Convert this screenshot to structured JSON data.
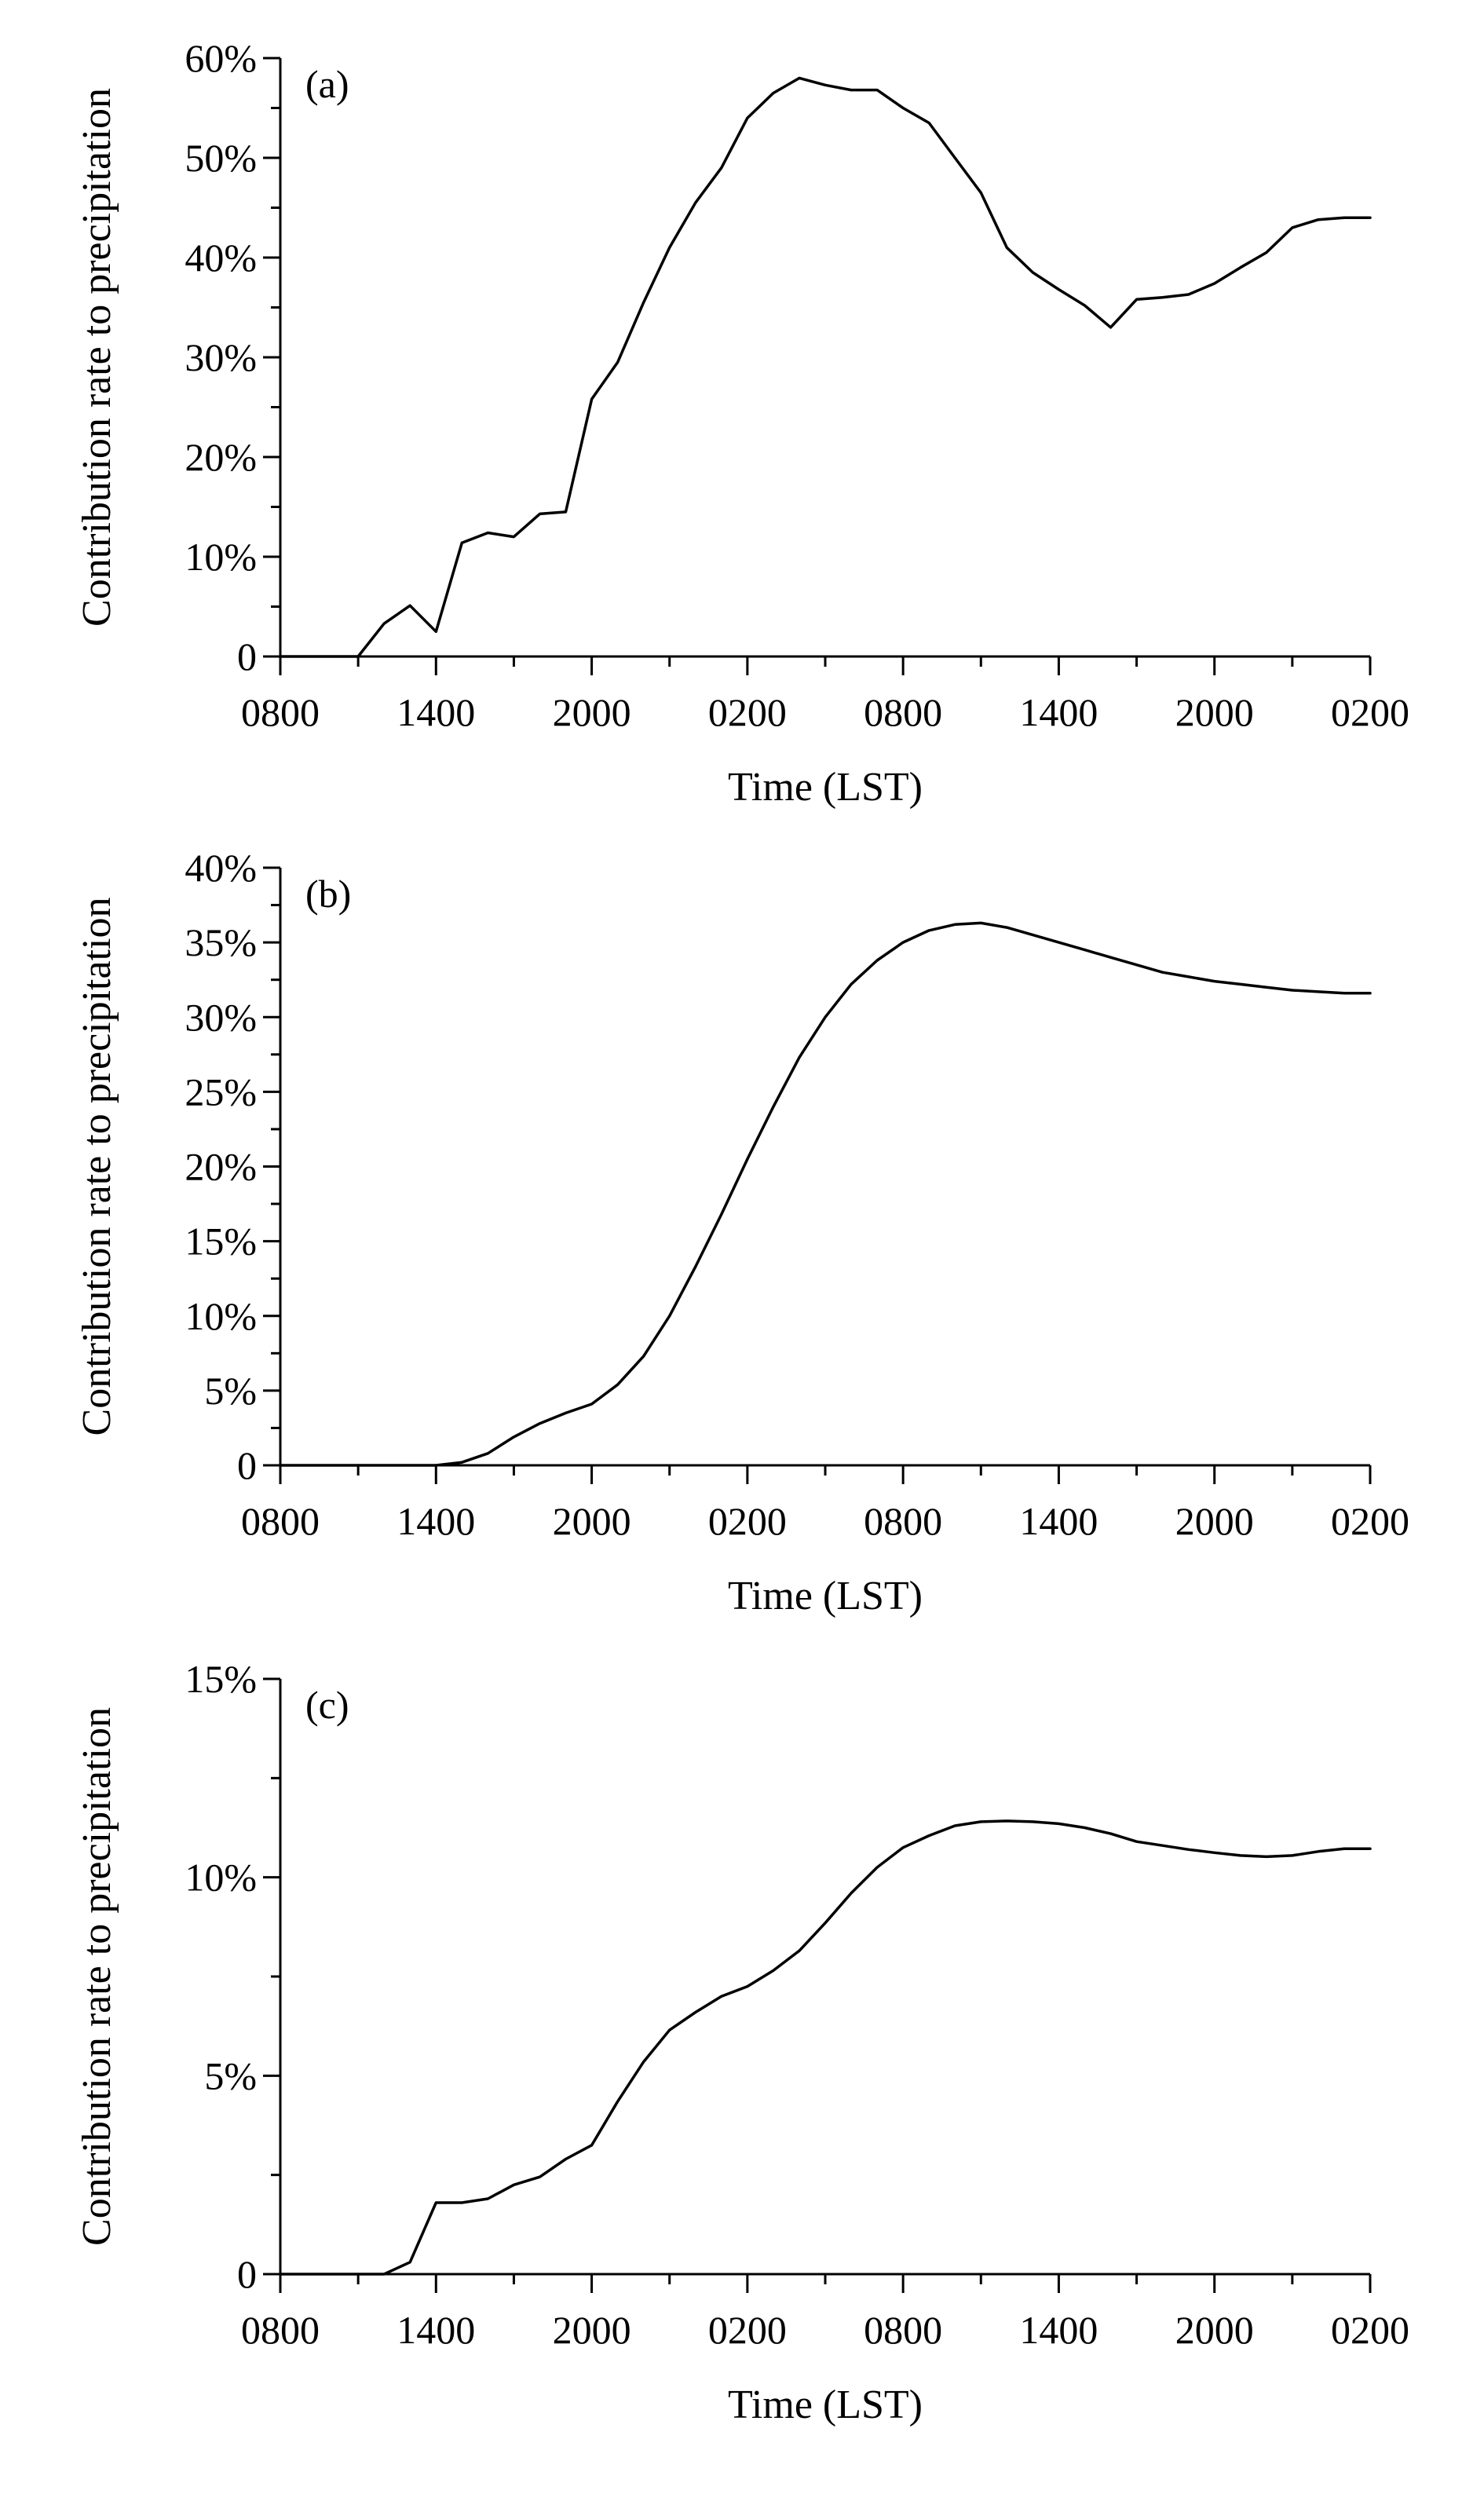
{
  "chart_data": [
    {
      "type": "line",
      "panel_label": "(a)",
      "title": "",
      "xlabel": "Time (LST)",
      "ylabel": "Contribution rate to precipitation",
      "x_tick_labels": [
        "0800",
        "1400",
        "2000",
        "0200",
        "0800",
        "1400",
        "2000",
        "0200"
      ],
      "x_tick_hours": [
        0,
        6,
        12,
        18,
        24,
        30,
        36,
        42
      ],
      "xlim_hours": [
        0,
        42
      ],
      "y_tick_labels": [
        "0",
        "10%",
        "20%",
        "30%",
        "40%",
        "50%",
        "60%"
      ],
      "y_tick_values": [
        0,
        10,
        20,
        30,
        40,
        50,
        60
      ],
      "ylim": [
        0,
        60
      ],
      "grid": false,
      "series": [
        {
          "x": [
            0,
            3,
            4,
            5,
            6,
            7,
            8,
            9,
            10,
            11,
            12,
            13,
            14,
            15,
            16,
            17,
            18,
            19,
            20,
            21,
            22,
            23,
            24,
            25,
            26,
            27,
            28,
            29,
            30,
            31,
            32,
            33,
            34,
            35,
            36,
            37,
            38,
            39,
            40,
            41,
            42
          ],
          "y": [
            0,
            0,
            3.3,
            5.1,
            2.5,
            11.4,
            12.4,
            12.0,
            14.3,
            14.5,
            25.8,
            29.5,
            35.5,
            41.0,
            45.5,
            49.0,
            54.0,
            56.5,
            58.0,
            57.3,
            56.8,
            56.8,
            55.0,
            53.5,
            50.0,
            46.5,
            41.0,
            38.5,
            36.8,
            35.2,
            33.0,
            35.8,
            36.0,
            36.3,
            37.4,
            39.0,
            40.5,
            43.0,
            43.8,
            44.0,
            44.0
          ]
        }
      ]
    },
    {
      "type": "line",
      "panel_label": "(b)",
      "title": "",
      "xlabel": "Time (LST)",
      "ylabel": "Contribution rate to precipitation",
      "x_tick_labels": [
        "0800",
        "1400",
        "2000",
        "0200",
        "0800",
        "1400",
        "2000",
        "0200"
      ],
      "x_tick_hours": [
        0,
        6,
        12,
        18,
        24,
        30,
        36,
        42
      ],
      "xlim_hours": [
        0,
        42
      ],
      "y_tick_labels": [
        "0",
        "5%",
        "10%",
        "15%",
        "20%",
        "25%",
        "30%",
        "35%",
        "40%"
      ],
      "y_tick_values": [
        0,
        5,
        10,
        15,
        20,
        25,
        30,
        35,
        40
      ],
      "ylim": [
        0,
        40
      ],
      "grid": false,
      "series": [
        {
          "x": [
            0,
            6,
            7,
            8,
            9,
            10,
            11,
            12,
            13,
            14,
            15,
            16,
            17,
            18,
            19,
            20,
            21,
            22,
            23,
            24,
            25,
            26,
            27,
            28,
            29,
            30,
            31,
            32,
            33,
            34,
            35,
            36,
            37,
            38,
            39,
            40,
            41,
            42
          ],
          "y": [
            0,
            0,
            0.2,
            0.8,
            1.9,
            2.8,
            3.5,
            4.1,
            5.4,
            7.3,
            10.0,
            13.3,
            16.8,
            20.5,
            24.0,
            27.3,
            30.0,
            32.2,
            33.8,
            35.0,
            35.8,
            36.2,
            36.3,
            36.0,
            35.5,
            35.0,
            34.5,
            34.0,
            33.5,
            33.0,
            32.7,
            32.4,
            32.2,
            32.0,
            31.8,
            31.7,
            31.6,
            31.6
          ]
        }
      ]
    },
    {
      "type": "line",
      "panel_label": "(c)",
      "title": "",
      "xlabel": "Time (LST)",
      "ylabel": "Contribution rate to precipitation",
      "x_tick_labels": [
        "0800",
        "1400",
        "2000",
        "0200",
        "0800",
        "1400",
        "2000",
        "0200"
      ],
      "x_tick_hours": [
        0,
        6,
        12,
        18,
        24,
        30,
        36,
        42
      ],
      "xlim_hours": [
        0,
        42
      ],
      "y_tick_labels": [
        "0",
        "5%",
        "10%",
        "15%"
      ],
      "y_tick_values": [
        0,
        5,
        10,
        15
      ],
      "ylim": [
        0,
        15
      ],
      "grid": false,
      "series": [
        {
          "x": [
            0,
            4,
            5,
            6,
            7,
            8,
            9,
            10,
            11,
            12,
            13,
            14,
            15,
            16,
            17,
            18,
            19,
            20,
            21,
            22,
            23,
            24,
            25,
            26,
            27,
            28,
            29,
            30,
            31,
            32,
            33,
            34,
            35,
            36,
            37,
            38,
            39,
            40,
            41,
            42
          ],
          "y": [
            0,
            0,
            0.3,
            1.8,
            1.8,
            1.9,
            2.25,
            2.45,
            2.9,
            3.25,
            4.35,
            5.35,
            6.15,
            6.6,
            7.0,
            7.25,
            7.65,
            8.15,
            8.85,
            9.6,
            10.25,
            10.75,
            11.05,
            11.3,
            11.4,
            11.42,
            11.4,
            11.35,
            11.25,
            11.1,
            10.9,
            10.8,
            10.7,
            10.62,
            10.55,
            10.52,
            10.55,
            10.65,
            10.72,
            10.72
          ]
        }
      ]
    }
  ]
}
